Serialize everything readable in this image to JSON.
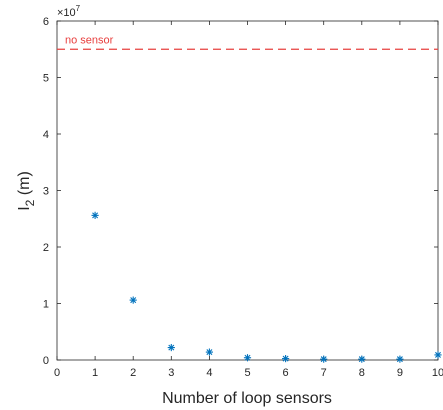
{
  "chart_data": {
    "type": "scatter",
    "x": [
      1,
      2,
      3,
      4,
      5,
      6,
      7,
      8,
      9,
      10
    ],
    "y": [
      25600000,
      10600000,
      2200000,
      1400000,
      400000,
      250000,
      150000,
      150000,
      150000,
      900000
    ],
    "xlabel": "Number of loop sensors",
    "ylabel_main": "I",
    "ylabel_sub": "2",
    "ylabel_unit": " (m)",
    "xlim": [
      0,
      10
    ],
    "ylim": [
      0,
      60000000
    ],
    "xticks": [
      "0",
      "1",
      "2",
      "3",
      "4",
      "5",
      "6",
      "7",
      "8",
      "9",
      "10"
    ],
    "yticks": [
      "0",
      "1",
      "2",
      "3",
      "4",
      "5",
      "6"
    ],
    "exponent_base": "×10",
    "exponent_power": "7",
    "reference_line": {
      "y": 55000000,
      "label": "no sensor",
      "color": "#e8403f",
      "style": "dashed"
    },
    "marker": "asterisk",
    "marker_color": "#0072bd",
    "grid": false
  }
}
